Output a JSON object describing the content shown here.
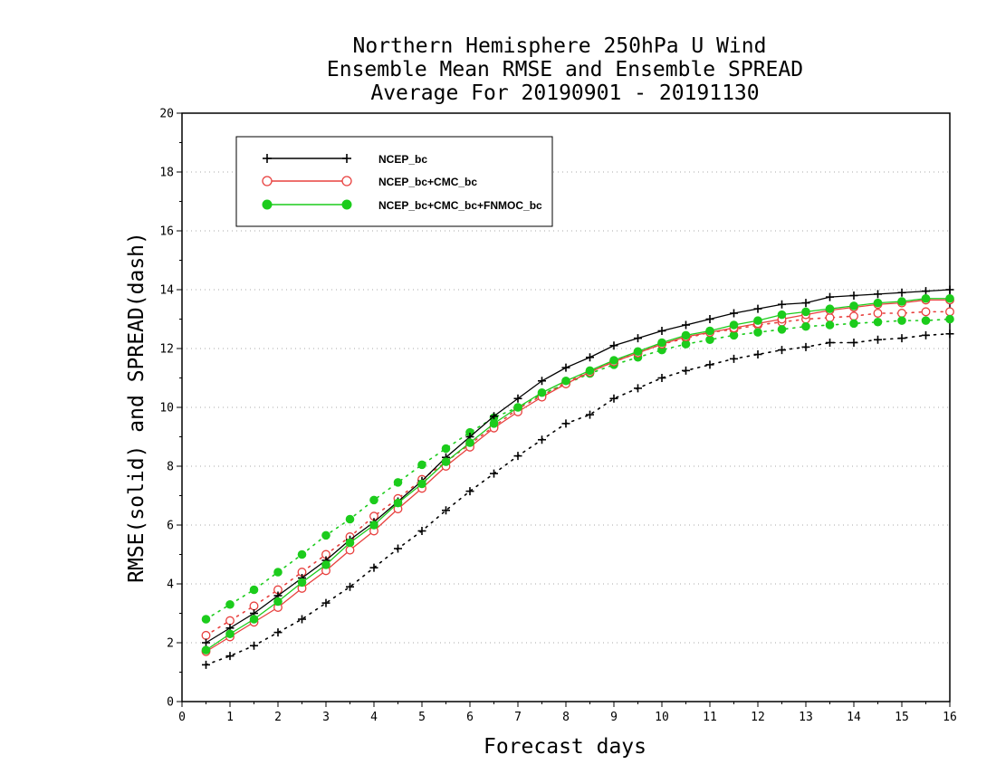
{
  "chart_data": {
    "type": "line",
    "title": [
      "Northern Hemisphere 250hPa U Wind",
      "Ensemble Mean RMSE and Ensemble SPREAD",
      "Average For 20190901 - 20191130"
    ],
    "xlabel": "Forecast days",
    "ylabel": "RMSE(solid) and SPREAD(dash)",
    "xlim": [
      0,
      16
    ],
    "ylim": [
      0,
      20
    ],
    "x_ticks": [
      "0",
      "1",
      "2",
      "3",
      "4",
      "5",
      "6",
      "7",
      "8",
      "9",
      "10",
      "11",
      "12",
      "13",
      "14",
      "15",
      "16"
    ],
    "y_ticks": [
      "0",
      "2",
      "4",
      "6",
      "8",
      "10",
      "12",
      "14",
      "16",
      "18",
      "20"
    ],
    "grid": "horizontal dotted",
    "legend_position": "top-left",
    "x": [
      0.5,
      1,
      1.5,
      2,
      2.5,
      3,
      3.5,
      4,
      4.5,
      5,
      5.5,
      6,
      6.5,
      7,
      7.5,
      8,
      8.5,
      9,
      9.5,
      10,
      10.5,
      11,
      11.5,
      12,
      12.5,
      13,
      13.5,
      14,
      14.5,
      15,
      15.5,
      16
    ],
    "series": [
      {
        "name": "NCEP_bc",
        "color": "#000000",
        "marker": "plus",
        "rmse": [
          2.0,
          2.5,
          3.0,
          3.6,
          4.2,
          4.8,
          5.5,
          6.1,
          6.8,
          7.5,
          8.3,
          9.0,
          9.7,
          10.3,
          10.9,
          11.35,
          11.7,
          12.1,
          12.35,
          12.6,
          12.8,
          13.0,
          13.2,
          13.35,
          13.5,
          13.55,
          13.75,
          13.8,
          13.85,
          13.9,
          13.95,
          14.0
        ],
        "spread": [
          1.25,
          1.55,
          1.9,
          2.35,
          2.8,
          3.35,
          3.9,
          4.55,
          5.2,
          5.8,
          6.5,
          7.15,
          7.75,
          8.35,
          8.9,
          9.45,
          9.75,
          10.3,
          10.65,
          11.0,
          11.25,
          11.45,
          11.65,
          11.8,
          11.95,
          12.05,
          12.2,
          12.2,
          12.3,
          12.35,
          12.45,
          12.5
        ]
      },
      {
        "name": "NCEP_bc+CMC_bc",
        "color": "#e8403e",
        "marker": "open-circle",
        "rmse": [
          1.7,
          2.2,
          2.7,
          3.2,
          3.85,
          4.45,
          5.15,
          5.8,
          6.55,
          7.25,
          8.0,
          8.65,
          9.3,
          9.85,
          10.35,
          10.8,
          11.2,
          11.55,
          11.85,
          12.15,
          12.4,
          12.55,
          12.7,
          12.85,
          13.0,
          13.15,
          13.3,
          13.4,
          13.5,
          13.55,
          13.65,
          13.65
        ],
        "spread": [
          2.25,
          2.75,
          3.25,
          3.8,
          4.4,
          5.0,
          5.6,
          6.3,
          6.9,
          7.55,
          8.15,
          8.75,
          9.35,
          9.95,
          10.4,
          10.85,
          11.2,
          11.55,
          11.85,
          12.15,
          12.35,
          12.55,
          12.65,
          12.8,
          12.9,
          13.0,
          13.05,
          13.1,
          13.2,
          13.2,
          13.25,
          13.25
        ]
      },
      {
        "name": "NCEP_bc+CMC_bc+FNMOC_bc",
        "color": "#1ccc1c",
        "marker": "filled-circle",
        "rmse": [
          1.75,
          2.3,
          2.8,
          3.4,
          4.05,
          4.65,
          5.4,
          6.0,
          6.75,
          7.4,
          8.15,
          8.8,
          9.45,
          10.0,
          10.5,
          10.9,
          11.25,
          11.6,
          11.9,
          12.2,
          12.45,
          12.6,
          12.8,
          12.95,
          13.15,
          13.25,
          13.35,
          13.45,
          13.55,
          13.6,
          13.7,
          13.7
        ],
        "spread": [
          2.8,
          3.3,
          3.8,
          4.4,
          5.0,
          5.65,
          6.2,
          6.85,
          7.45,
          8.05,
          8.6,
          9.15,
          9.65,
          10.0,
          10.45,
          10.8,
          11.15,
          11.45,
          11.7,
          11.95,
          12.15,
          12.3,
          12.45,
          12.55,
          12.65,
          12.75,
          12.8,
          12.85,
          12.9,
          12.95,
          12.95,
          13.0
        ]
      }
    ]
  }
}
